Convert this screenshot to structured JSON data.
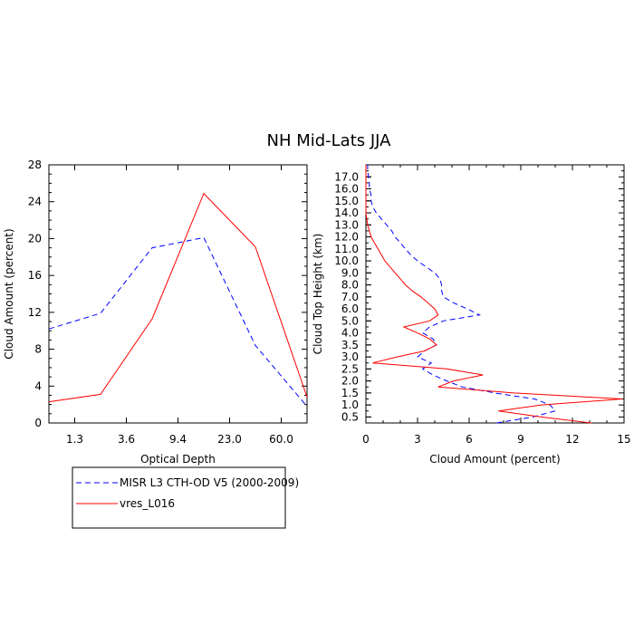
{
  "title": "NH Mid-Lats JJA",
  "chart_data": [
    {
      "type": "line",
      "xlabel": "Optical Depth",
      "ylabel": "Cloud Amount (percent)",
      "xtick_labels": [
        "1.3",
        "3.6",
        "9.4",
        "23.0",
        "60.0"
      ],
      "ylim": [
        0,
        28
      ],
      "yticks": [
        0,
        4,
        8,
        12,
        16,
        20,
        24,
        28
      ],
      "x_index": [
        0,
        1,
        2,
        3,
        4,
        5
      ],
      "series": [
        {
          "name": "MISR L3 CTH-OD V5 (2000-2009)",
          "color": "#0000ff",
          "dash": "dashed",
          "values": [
            10.2,
            11.9,
            19.0,
            20.1,
            8.4,
            1.8
          ]
        },
        {
          "name": "vres_L016",
          "color": "#ff0000",
          "dash": "solid",
          "values": [
            2.3,
            3.1,
            11.3,
            24.9,
            19.1,
            2.8
          ]
        }
      ]
    },
    {
      "type": "line",
      "xlabel": "Cloud Amount (percent)",
      "ylabel": "Cloud Top Height (km)",
      "xlim": [
        0,
        15
      ],
      "xticks": [
        0,
        3,
        6,
        9,
        12,
        15
      ],
      "ytick_labels": [
        "0.5",
        "1.0",
        "1.5",
        "2.0",
        "2.5",
        "3.0",
        "3.5",
        "4.0",
        "5.0",
        "6.0",
        "7.0",
        "8.0",
        "9.0",
        "10.0",
        "11.0",
        "12.0",
        "13.0",
        "14.0",
        "15.0",
        "16.0",
        "17.0"
      ],
      "y_levels": [
        "0.25",
        "0.5",
        "0.75",
        "1.0",
        "1.25",
        "1.5",
        "1.75",
        "2.0",
        "2.25",
        "2.5",
        "2.75",
        "3.0",
        "3.25",
        "3.5",
        "3.75",
        "4.0",
        "4.5",
        "5.0",
        "5.5",
        "6.0",
        "6.5",
        "7.0",
        "7.5",
        "8.0",
        "8.5",
        "9.0",
        "9.5",
        "10.0",
        "10.5",
        "11.0",
        "11.5",
        "12.0",
        "12.5",
        "13.0",
        "13.5",
        "14.0",
        "14.5",
        "15.0",
        "15.5",
        "16.0",
        "16.5",
        "17.0",
        "17.5",
        "18.0"
      ],
      "series": [
        {
          "name": "MISR L3 CTH-OD V5 (2000-2009)",
          "color": "#0000ff",
          "dash": "dashed",
          "values": [
            7.6,
            9.7,
            11.0,
            10.7,
            9.8,
            7.5,
            5.6,
            4.7,
            3.9,
            3.3,
            3.8,
            3.0,
            3.4,
            4.1,
            3.9,
            3.3,
            3.7,
            4.5,
            6.6,
            5.9,
            5.1,
            4.5,
            4.4,
            4.4,
            4.3,
            4.0,
            3.5,
            3.0,
            2.6,
            2.3,
            2.0,
            1.7,
            1.5,
            1.2,
            0.9,
            0.6,
            0.4,
            0.3,
            0.3,
            0.2,
            0.2,
            0.15,
            0.1,
            0.1
          ]
        },
        {
          "name": "vres_L016",
          "color": "#ff0000",
          "dash": "solid",
          "values": [
            13.1,
            10.2,
            7.7,
            10.2,
            14.9,
            8.6,
            4.2,
            5.1,
            6.8,
            4.7,
            0.4,
            1.8,
            3.4,
            4.1,
            3.7,
            3.0,
            2.2,
            3.7,
            4.2,
            4.0,
            3.6,
            3.2,
            2.7,
            2.3,
            2.0,
            1.7,
            1.4,
            1.1,
            0.9,
            0.7,
            0.5,
            0.3,
            0.2,
            0.1,
            0.05,
            0.0,
            0.0,
            0.0,
            0.0,
            0.0,
            0.0,
            0.0,
            0.0,
            0.0
          ]
        }
      ]
    }
  ],
  "legend": {
    "items": [
      {
        "label": "MISR L3 CTH-OD V5 (2000-2009)",
        "color": "#0000ff",
        "dash": "dashed"
      },
      {
        "label": "vres_L016",
        "color": "#ff0000",
        "dash": "solid"
      }
    ]
  }
}
